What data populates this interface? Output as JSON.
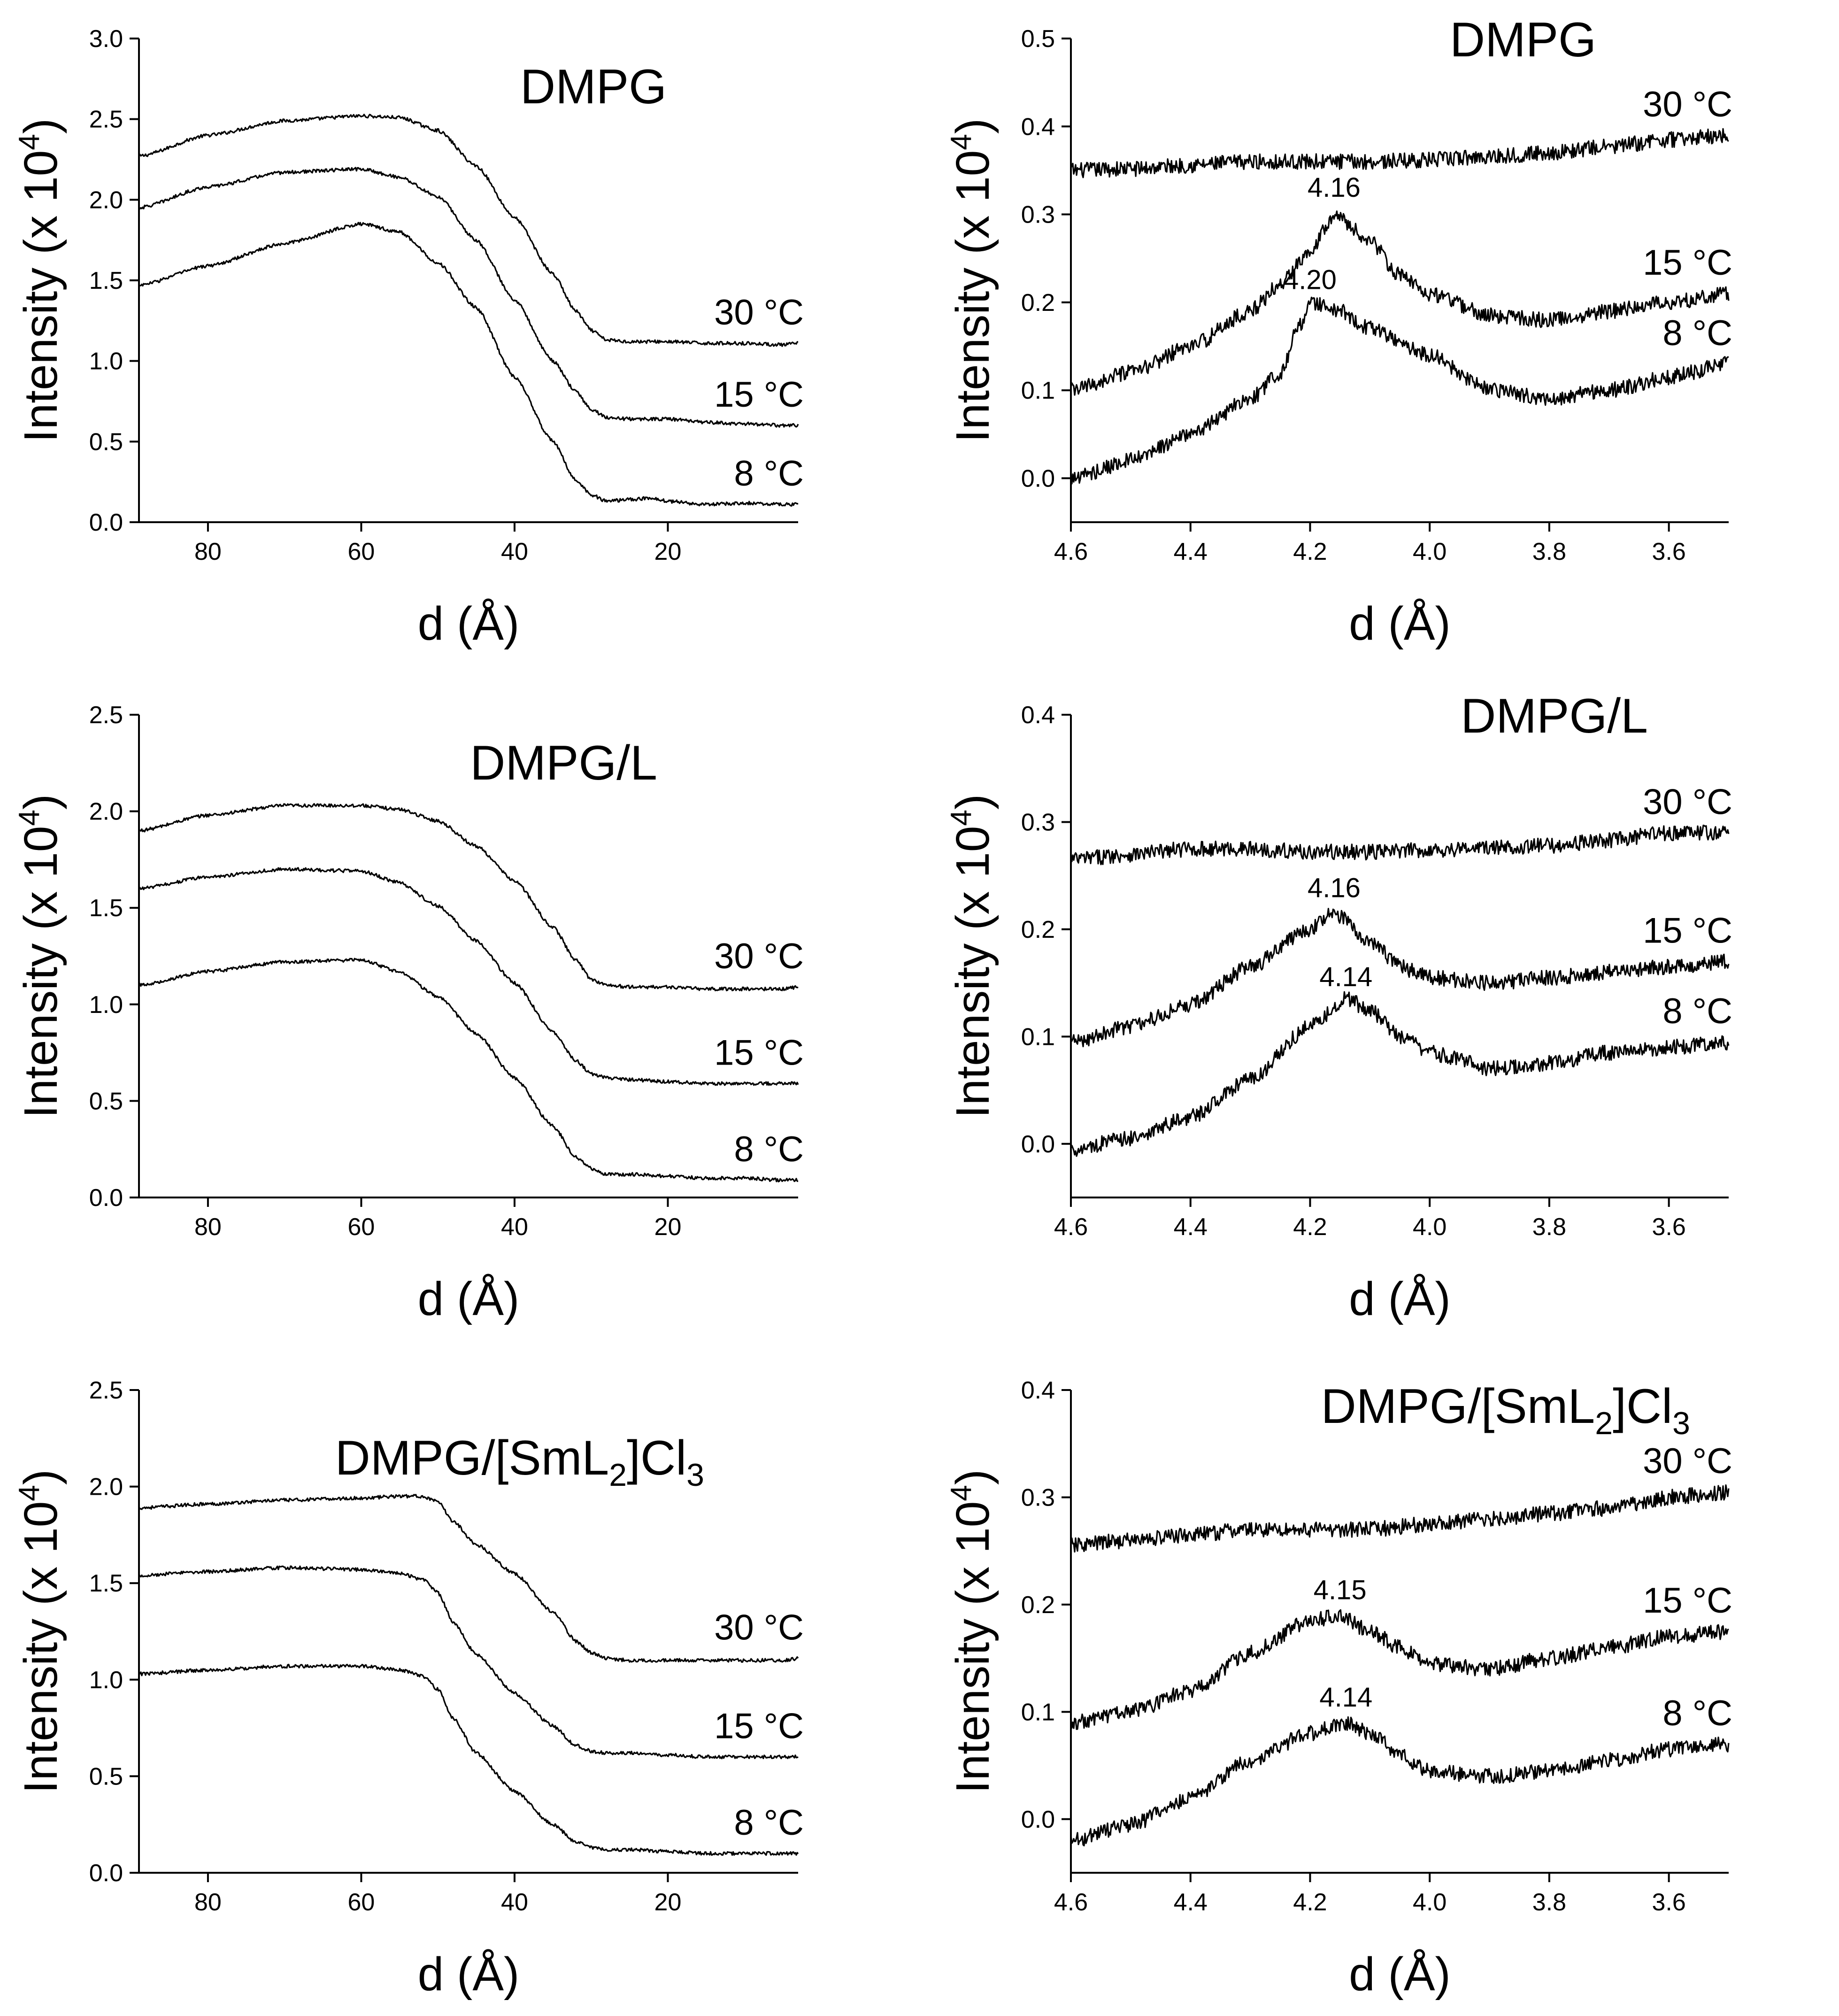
{
  "figure": {
    "ylabel_prefix": "Intensity (x 10",
    "ylabel_exponent": "4",
    "ylabel_suffix": ")",
    "xlabel": "d (Å)"
  },
  "chart_data": [
    {
      "id": "p1",
      "type": "line",
      "title": "DMPG",
      "xlabel": "d (Å)",
      "ylabel": "Intensity (x 10^4)",
      "xlim": [
        89,
        3
      ],
      "ylim": [
        0,
        3.0
      ],
      "xticks": [
        80,
        60,
        40,
        20
      ],
      "xtick_labels": [
        "80",
        "60",
        "40",
        "20"
      ],
      "yticks": [
        0,
        0.5,
        1.0,
        1.5,
        2.0,
        2.5,
        3.0
      ],
      "ytick_labels": [
        "0.0",
        "0.5",
        "1.0",
        "1.5",
        "2.0",
        "2.5",
        "3.0"
      ],
      "series": [
        {
          "name": "30 °C",
          "x": [
            89,
            80,
            70,
            60,
            55,
            50,
            45,
            40,
            35,
            32,
            30,
            28,
            25,
            20,
            15,
            10,
            5,
            3
          ],
          "values": [
            2.27,
            2.4,
            2.49,
            2.52,
            2.51,
            2.43,
            2.21,
            1.89,
            1.54,
            1.31,
            1.19,
            1.13,
            1.12,
            1.12,
            1.11,
            1.11,
            1.1,
            1.11
          ]
        },
        {
          "name": "15 °C",
          "x": [
            89,
            80,
            70,
            60,
            55,
            50,
            45,
            40,
            35,
            32,
            30,
            28,
            25,
            20,
            15,
            10,
            5,
            3
          ],
          "values": [
            1.95,
            2.08,
            2.17,
            2.19,
            2.14,
            2.02,
            1.75,
            1.38,
            1.0,
            0.81,
            0.7,
            0.65,
            0.64,
            0.64,
            0.62,
            0.61,
            0.6,
            0.6
          ]
        },
        {
          "name": "8 °C",
          "x": [
            89,
            80,
            70,
            60,
            55,
            50,
            45,
            40,
            35,
            32,
            30,
            28,
            25,
            22,
            20,
            15,
            10,
            5,
            3
          ],
          "values": [
            1.47,
            1.59,
            1.73,
            1.85,
            1.8,
            1.61,
            1.33,
            0.9,
            0.5,
            0.26,
            0.17,
            0.13,
            0.14,
            0.15,
            0.13,
            0.11,
            0.12,
            0.11,
            0.11
          ]
        }
      ],
      "peak_labels": []
    },
    {
      "id": "p2",
      "type": "line",
      "title": "DMPG",
      "xlabel": "d (Å)",
      "ylabel": "Intensity (x 10^4)",
      "xlim": [
        4.6,
        3.5
      ],
      "ylim": [
        -0.05,
        0.5
      ],
      "xticks": [
        4.6,
        4.4,
        4.2,
        4.0,
        3.8,
        3.6
      ],
      "xtick_labels": [
        "4.6",
        "4.4",
        "4.2",
        "4.0",
        "3.8",
        "3.6"
      ],
      "yticks": [
        0.0,
        0.1,
        0.2,
        0.3,
        0.4,
        0.5
      ],
      "ytick_labels": [
        "0.0",
        "0.1",
        "0.2",
        "0.3",
        "0.4",
        "0.5"
      ],
      "series": [
        {
          "name": "30 °C",
          "x": [
            4.6,
            4.5,
            4.4,
            4.3,
            4.2,
            4.1,
            4.0,
            3.9,
            3.8,
            3.7,
            3.6,
            3.5
          ],
          "values": [
            0.35,
            0.352,
            0.356,
            0.36,
            0.36,
            0.36,
            0.362,
            0.366,
            0.37,
            0.377,
            0.385,
            0.39
          ]
        },
        {
          "name": "15 °C",
          "x": [
            4.6,
            4.5,
            4.4,
            4.3,
            4.25,
            4.2,
            4.16,
            4.1,
            4.05,
            4.0,
            3.9,
            3.8,
            3.7,
            3.6,
            3.5
          ],
          "values": [
            0.1,
            0.12,
            0.15,
            0.19,
            0.22,
            0.26,
            0.3,
            0.27,
            0.23,
            0.21,
            0.185,
            0.18,
            0.19,
            0.2,
            0.21
          ]
        },
        {
          "name": "8 °C",
          "x": [
            4.6,
            4.5,
            4.4,
            4.3,
            4.25,
            4.22,
            4.2,
            4.15,
            4.1,
            4.0,
            3.9,
            3.8,
            3.7,
            3.6,
            3.5
          ],
          "values": [
            0.0,
            0.02,
            0.05,
            0.09,
            0.12,
            0.17,
            0.2,
            0.19,
            0.17,
            0.14,
            0.1,
            0.09,
            0.1,
            0.115,
            0.13
          ]
        }
      ],
      "peak_labels": [
        {
          "label": "4.16",
          "x": 4.16,
          "y": 0.32
        },
        {
          "label": "4.20",
          "x": 4.2,
          "y": 0.215
        }
      ]
    },
    {
      "id": "p3",
      "type": "line",
      "title": "DMPG/L",
      "xlabel": "d (Å)",
      "ylabel": "Intensity (x 10^4)",
      "xlim": [
        89,
        3
      ],
      "ylim": [
        0,
        2.5
      ],
      "xticks": [
        80,
        60,
        40,
        20
      ],
      "xtick_labels": [
        "80",
        "60",
        "40",
        "20"
      ],
      "yticks": [
        0,
        0.5,
        1.0,
        1.5,
        2.0,
        2.5
      ],
      "ytick_labels": [
        "0.0",
        "0.5",
        "1.0",
        "1.5",
        "2.0",
        "2.5"
      ],
      "series": [
        {
          "name": "30 °C",
          "x": [
            89,
            80,
            70,
            60,
            55,
            50,
            45,
            40,
            35,
            32,
            30,
            28,
            25,
            20,
            15,
            10,
            5,
            3
          ],
          "values": [
            1.9,
            1.98,
            2.03,
            2.03,
            2.01,
            1.95,
            1.82,
            1.64,
            1.4,
            1.23,
            1.13,
            1.1,
            1.09,
            1.09,
            1.08,
            1.08,
            1.08,
            1.09
          ]
        },
        {
          "name": "15 °C",
          "x": [
            89,
            80,
            70,
            60,
            55,
            50,
            45,
            40,
            35,
            32,
            30,
            28,
            25,
            20,
            15,
            10,
            5,
            3
          ],
          "values": [
            1.6,
            1.66,
            1.7,
            1.69,
            1.63,
            1.51,
            1.33,
            1.11,
            0.86,
            0.71,
            0.64,
            0.62,
            0.61,
            0.6,
            0.59,
            0.59,
            0.59,
            0.59
          ]
        },
        {
          "name": "8 °C",
          "x": [
            89,
            80,
            70,
            60,
            55,
            50,
            45,
            40,
            35,
            32,
            30,
            28,
            25,
            20,
            15,
            10,
            5,
            3
          ],
          "values": [
            1.1,
            1.17,
            1.22,
            1.23,
            1.17,
            1.04,
            0.85,
            0.62,
            0.37,
            0.21,
            0.15,
            0.12,
            0.12,
            0.11,
            0.1,
            0.1,
            0.09,
            0.09
          ]
        }
      ],
      "peak_labels": []
    },
    {
      "id": "p4",
      "type": "line",
      "title": "DMPG/L",
      "xlabel": "d (Å)",
      "ylabel": "Intensity (x 10^4)",
      "xlim": [
        4.6,
        3.5
      ],
      "ylim": [
        -0.05,
        0.4
      ],
      "xticks": [
        4.6,
        4.4,
        4.2,
        4.0,
        3.8,
        3.6
      ],
      "xtick_labels": [
        "4.6",
        "4.4",
        "4.2",
        "4.0",
        "3.8",
        "3.6"
      ],
      "yticks": [
        0.0,
        0.1,
        0.2,
        0.3,
        0.4
      ],
      "ytick_labels": [
        "0.0",
        "0.1",
        "0.2",
        "0.3",
        "0.4"
      ],
      "series": [
        {
          "name": "30 °C",
          "x": [
            4.6,
            4.5,
            4.4,
            4.3,
            4.2,
            4.1,
            4.0,
            3.9,
            3.8,
            3.7,
            3.6,
            3.5
          ],
          "values": [
            0.265,
            0.27,
            0.275,
            0.275,
            0.272,
            0.272,
            0.274,
            0.276,
            0.278,
            0.283,
            0.29,
            0.29
          ]
        },
        {
          "name": "15 °C",
          "x": [
            4.6,
            4.5,
            4.4,
            4.3,
            4.2,
            4.16,
            4.1,
            4.05,
            4.0,
            3.9,
            3.8,
            3.7,
            3.6,
            3.5
          ],
          "values": [
            0.095,
            0.11,
            0.13,
            0.165,
            0.2,
            0.215,
            0.19,
            0.165,
            0.155,
            0.15,
            0.155,
            0.16,
            0.165,
            0.17
          ]
        },
        {
          "name": "8 °C",
          "x": [
            4.6,
            4.5,
            4.4,
            4.3,
            4.2,
            4.14,
            4.1,
            4.05,
            4.0,
            3.95,
            3.9,
            3.8,
            3.7,
            3.6,
            3.5
          ],
          "values": [
            -0.005,
            0.005,
            0.025,
            0.06,
            0.11,
            0.135,
            0.125,
            0.1,
            0.085,
            0.08,
            0.07,
            0.075,
            0.085,
            0.09,
            0.095
          ]
        }
      ],
      "peak_labels": [
        {
          "label": "4.16",
          "x": 4.16,
          "y": 0.23
        },
        {
          "label": "4.14",
          "x": 4.14,
          "y": 0.147
        }
      ]
    },
    {
      "id": "p5",
      "type": "line",
      "title": "DMPG/[SmL2]Cl3",
      "title_parts": {
        "a": "DMPG/[SmL",
        "sub1": "2",
        "b": "]Cl",
        "sub2": "3"
      },
      "xlabel": "d (Å)",
      "ylabel": "Intensity (x 10^4)",
      "xlim": [
        89,
        3
      ],
      "ylim": [
        0,
        2.5
      ],
      "xticks": [
        80,
        60,
        40,
        20
      ],
      "xtick_labels": [
        "80",
        "60",
        "40",
        "20"
      ],
      "yticks": [
        0,
        0.5,
        1.0,
        1.5,
        2.0,
        2.5
      ],
      "ytick_labels": [
        "0.0",
        "0.5",
        "1.0",
        "1.5",
        "2.0",
        "2.5"
      ],
      "series": [
        {
          "name": "30 °C",
          "x": [
            89,
            80,
            70,
            60,
            55,
            52,
            50,
            48,
            45,
            40,
            35,
            32,
            30,
            28,
            25,
            20,
            15,
            10,
            5,
            3
          ],
          "values": [
            1.89,
            1.91,
            1.93,
            1.94,
            1.95,
            1.95,
            1.92,
            1.82,
            1.7,
            1.55,
            1.35,
            1.2,
            1.14,
            1.11,
            1.1,
            1.1,
            1.1,
            1.1,
            1.1,
            1.11
          ]
        },
        {
          "name": "15 °C",
          "x": [
            89,
            80,
            70,
            60,
            55,
            52,
            50,
            48,
            45,
            40,
            35,
            32,
            30,
            28,
            25,
            20,
            15,
            10,
            5,
            3
          ],
          "values": [
            1.54,
            1.56,
            1.58,
            1.57,
            1.55,
            1.52,
            1.45,
            1.3,
            1.13,
            0.93,
            0.76,
            0.66,
            0.63,
            0.62,
            0.62,
            0.61,
            0.6,
            0.6,
            0.6,
            0.6
          ]
        },
        {
          "name": "8 °C",
          "x": [
            89,
            80,
            70,
            60,
            55,
            52,
            50,
            48,
            45,
            40,
            35,
            32,
            30,
            28,
            25,
            20,
            15,
            10,
            5,
            3
          ],
          "values": [
            1.03,
            1.05,
            1.07,
            1.07,
            1.05,
            1.02,
            0.95,
            0.8,
            0.62,
            0.42,
            0.25,
            0.16,
            0.13,
            0.12,
            0.12,
            0.11,
            0.1,
            0.1,
            0.1,
            0.1
          ]
        }
      ],
      "peak_labels": []
    },
    {
      "id": "p6",
      "type": "line",
      "title": "DMPG/[SmL2]Cl3",
      "title_parts": {
        "a": "DMPG/[SmL",
        "sub1": "2",
        "b": "]Cl",
        "sub2": "3"
      },
      "xlabel": "d (Å)",
      "ylabel": "Intensity (x 10^4)",
      "xlim": [
        4.6,
        3.5
      ],
      "ylim": [
        -0.05,
        0.4
      ],
      "xticks": [
        4.6,
        4.4,
        4.2,
        4.0,
        3.8,
        3.6
      ],
      "xtick_labels": [
        "4.6",
        "4.4",
        "4.2",
        "4.0",
        "3.8",
        "3.6"
      ],
      "yticks": [
        0.0,
        0.1,
        0.2,
        0.3,
        0.4
      ],
      "ytick_labels": [
        "0.0",
        "0.1",
        "0.2",
        "0.3",
        "0.4"
      ],
      "series": [
        {
          "name": "30 °C",
          "x": [
            4.6,
            4.5,
            4.4,
            4.3,
            4.2,
            4.1,
            4.0,
            3.9,
            3.8,
            3.7,
            3.6,
            3.5
          ],
          "values": [
            0.255,
            0.26,
            0.265,
            0.27,
            0.27,
            0.27,
            0.275,
            0.28,
            0.285,
            0.29,
            0.3,
            0.305
          ]
        },
        {
          "name": "15 °C",
          "x": [
            4.6,
            4.5,
            4.4,
            4.3,
            4.2,
            4.15,
            4.1,
            4.05,
            4.0,
            3.9,
            3.8,
            3.7,
            3.6,
            3.5
          ],
          "values": [
            0.09,
            0.1,
            0.12,
            0.155,
            0.185,
            0.19,
            0.175,
            0.16,
            0.145,
            0.14,
            0.15,
            0.16,
            0.17,
            0.175
          ]
        },
        {
          "name": "8 °C",
          "x": [
            4.6,
            4.5,
            4.4,
            4.3,
            4.2,
            4.14,
            4.1,
            4.05,
            4.0,
            3.9,
            3.8,
            3.7,
            3.6,
            3.5
          ],
          "values": [
            -0.02,
            -0.005,
            0.02,
            0.055,
            0.08,
            0.09,
            0.08,
            0.06,
            0.045,
            0.04,
            0.045,
            0.055,
            0.065,
            0.07
          ]
        }
      ],
      "peak_labels": [
        {
          "label": "4.15",
          "x": 4.15,
          "y": 0.205
        },
        {
          "label": "4.14",
          "x": 4.14,
          "y": 0.105
        }
      ]
    }
  ]
}
